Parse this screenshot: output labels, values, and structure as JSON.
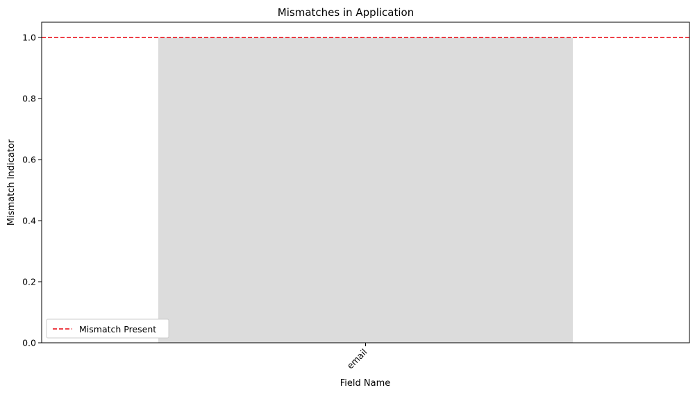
{
  "chart_data": {
    "type": "bar",
    "title": "Mismatches in Application",
    "xlabel": "Field Name",
    "ylabel": "Mismatch Indicator",
    "categories": [
      "email"
    ],
    "values": [
      1
    ],
    "ylim": [
      0,
      1.05
    ],
    "yticks": [
      0.0,
      0.2,
      0.4,
      0.6,
      0.8,
      1.0
    ],
    "ytick_labels": [
      "0.0",
      "0.2",
      "0.4",
      "0.6",
      "0.8",
      "1.0"
    ],
    "bar_color": "#dcdcdc",
    "reference_line": {
      "y": 1.0,
      "label": "Mismatch Present",
      "color": "#e8000b",
      "style": "dashed"
    },
    "legend": {
      "position": "lower-left",
      "entries": [
        "Mismatch Present"
      ]
    },
    "grid": false
  }
}
